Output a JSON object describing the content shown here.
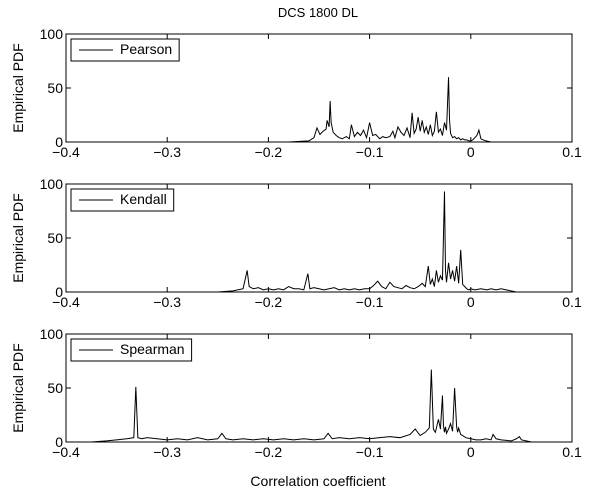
{
  "figure_title": "DCS 1800 DL",
  "xlabel": "Correlation coefficient",
  "chart_data": [
    {
      "type": "line",
      "legend": "Pearson",
      "ylabel": "Empirical PDF",
      "xlim": [
        -0.4,
        0.1
      ],
      "ylim": [
        0,
        100
      ],
      "xticks": [
        -0.4,
        -0.3,
        -0.2,
        -0.1,
        0,
        0.1
      ],
      "xtick_labels": [
        "−0.4",
        "−0.3",
        "−0.2",
        "−0.1",
        "0",
        "0.1"
      ],
      "yticks": [
        0,
        50,
        100
      ],
      "ytick_labels": [
        "0",
        "50",
        "100"
      ],
      "x": [
        -0.4,
        -0.18,
        -0.16,
        -0.155,
        -0.152,
        -0.149,
        -0.146,
        -0.143,
        -0.142,
        -0.14,
        -0.139,
        -0.138,
        -0.136,
        -0.133,
        -0.13,
        -0.127,
        -0.123,
        -0.12,
        -0.118,
        -0.115,
        -0.112,
        -0.109,
        -0.106,
        -0.103,
        -0.1,
        -0.097,
        -0.094,
        -0.09,
        -0.087,
        -0.084,
        -0.08,
        -0.077,
        -0.075,
        -0.072,
        -0.069,
        -0.066,
        -0.063,
        -0.06,
        -0.058,
        -0.056,
        -0.054,
        -0.052,
        -0.05,
        -0.048,
        -0.046,
        -0.044,
        -0.042,
        -0.04,
        -0.038,
        -0.036,
        -0.034,
        -0.032,
        -0.03,
        -0.028,
        -0.026,
        -0.024,
        -0.022,
        -0.021,
        -0.02,
        -0.018,
        -0.016,
        -0.014,
        -0.012,
        -0.01,
        -0.008,
        -0.006,
        -0.004,
        -0.002,
        0,
        0.002,
        0.004,
        0.006,
        0.008,
        0.01,
        0.012,
        0.015,
        0.02,
        0.1
      ],
      "y": [
        0,
        0,
        1,
        4,
        13,
        7,
        10,
        12,
        20,
        14,
        38,
        18,
        9,
        6,
        4,
        3,
        5,
        3,
        16,
        5,
        9,
        6,
        11,
        4,
        18,
        6,
        7,
        3,
        5,
        4,
        5,
        10,
        4,
        14,
        9,
        6,
        13,
        4,
        27,
        8,
        12,
        23,
        10,
        20,
        9,
        14,
        7,
        16,
        6,
        10,
        28,
        9,
        12,
        6,
        18,
        11,
        60,
        20,
        8,
        4,
        5,
        3,
        4,
        2,
        3,
        2,
        2,
        1,
        1,
        2,
        4,
        6,
        11,
        3,
        2,
        1,
        0,
        0
      ]
    },
    {
      "type": "line",
      "legend": "Kendall",
      "ylabel": "Empirical PDF",
      "xlim": [
        -0.4,
        0.1
      ],
      "ylim": [
        0,
        100
      ],
      "xticks": [
        -0.4,
        -0.3,
        -0.2,
        -0.1,
        0,
        0.1
      ],
      "xtick_labels": [
        "−0.4",
        "−0.3",
        "−0.2",
        "−0.1",
        "0",
        "0.1"
      ],
      "yticks": [
        0,
        50,
        100
      ],
      "ytick_labels": [
        "0",
        "50",
        "100"
      ],
      "x": [
        -0.4,
        -0.25,
        -0.235,
        -0.225,
        -0.221,
        -0.219,
        -0.215,
        -0.21,
        -0.205,
        -0.2,
        -0.195,
        -0.19,
        -0.185,
        -0.18,
        -0.175,
        -0.17,
        -0.165,
        -0.161,
        -0.159,
        -0.155,
        -0.15,
        -0.145,
        -0.14,
        -0.135,
        -0.13,
        -0.125,
        -0.12,
        -0.115,
        -0.11,
        -0.105,
        -0.1,
        -0.096,
        -0.092,
        -0.088,
        -0.084,
        -0.08,
        -0.076,
        -0.072,
        -0.068,
        -0.064,
        -0.06,
        -0.056,
        -0.052,
        -0.048,
        -0.045,
        -0.042,
        -0.04,
        -0.038,
        -0.036,
        -0.034,
        -0.032,
        -0.03,
        -0.028,
        -0.026,
        -0.025,
        -0.024,
        -0.022,
        -0.02,
        -0.018,
        -0.016,
        -0.014,
        -0.012,
        -0.01,
        -0.008,
        -0.006,
        -0.004,
        -0.002,
        0,
        0.004,
        0.01,
        0.016,
        0.02,
        0.025,
        0.03,
        0.035,
        0.045,
        0.1
      ],
      "y": [
        0,
        0,
        1,
        3,
        20,
        5,
        3,
        4,
        2,
        3,
        2,
        3,
        2,
        5,
        3,
        3,
        2,
        17,
        3,
        4,
        3,
        2,
        3,
        4,
        2,
        3,
        2,
        3,
        2,
        3,
        3,
        6,
        10,
        5,
        3,
        9,
        5,
        4,
        3,
        6,
        4,
        3,
        5,
        8,
        5,
        24,
        7,
        12,
        5,
        20,
        9,
        15,
        11,
        93,
        20,
        9,
        27,
        12,
        20,
        10,
        24,
        8,
        39,
        7,
        5,
        3,
        2,
        3,
        2,
        3,
        2,
        3,
        2,
        3,
        2,
        0,
        0
      ]
    },
    {
      "type": "line",
      "legend": "Spearman",
      "ylabel": "Empirical PDF",
      "xlim": [
        -0.4,
        0.1
      ],
      "ylim": [
        0,
        100
      ],
      "xticks": [
        -0.4,
        -0.3,
        -0.2,
        -0.1,
        0,
        0.1
      ],
      "xtick_labels": [
        "−0.4",
        "−0.3",
        "−0.2",
        "−0.1",
        "0",
        "0.1"
      ],
      "yticks": [
        0,
        50,
        100
      ],
      "ytick_labels": [
        "0",
        "50",
        "100"
      ],
      "x": [
        -0.4,
        -0.375,
        -0.36,
        -0.35,
        -0.34,
        -0.333,
        -0.331,
        -0.329,
        -0.325,
        -0.32,
        -0.31,
        -0.3,
        -0.29,
        -0.28,
        -0.27,
        -0.26,
        -0.25,
        -0.246,
        -0.242,
        -0.235,
        -0.225,
        -0.215,
        -0.205,
        -0.195,
        -0.185,
        -0.175,
        -0.165,
        -0.155,
        -0.145,
        -0.141,
        -0.137,
        -0.13,
        -0.12,
        -0.11,
        -0.1,
        -0.09,
        -0.08,
        -0.07,
        -0.06,
        -0.055,
        -0.05,
        -0.045,
        -0.041,
        -0.039,
        -0.037,
        -0.035,
        -0.032,
        -0.03,
        -0.028,
        -0.027,
        -0.026,
        -0.025,
        -0.024,
        -0.022,
        -0.02,
        -0.018,
        -0.016,
        -0.014,
        -0.013,
        -0.012,
        -0.01,
        -0.008,
        -0.005,
        0,
        0.005,
        0.01,
        0.015,
        0.02,
        0.022,
        0.025,
        0.03,
        0.04,
        0.045,
        0.048,
        0.05,
        0.06,
        0.1
      ],
      "y": [
        0,
        0,
        1,
        2,
        3,
        4,
        51,
        4,
        3,
        4,
        3,
        2,
        3,
        2,
        4,
        2,
        3,
        8,
        3,
        2,
        3,
        2,
        3,
        2,
        3,
        2,
        3,
        2,
        3,
        8,
        3,
        4,
        3,
        4,
        3,
        4,
        5,
        4,
        7,
        12,
        6,
        9,
        13,
        67,
        12,
        9,
        21,
        12,
        43,
        15,
        9,
        14,
        8,
        12,
        17,
        10,
        50,
        14,
        9,
        13,
        7,
        6,
        4,
        3,
        2,
        2,
        3,
        2,
        7,
        3,
        2,
        1,
        3,
        5,
        2,
        0,
        0
      ]
    }
  ]
}
